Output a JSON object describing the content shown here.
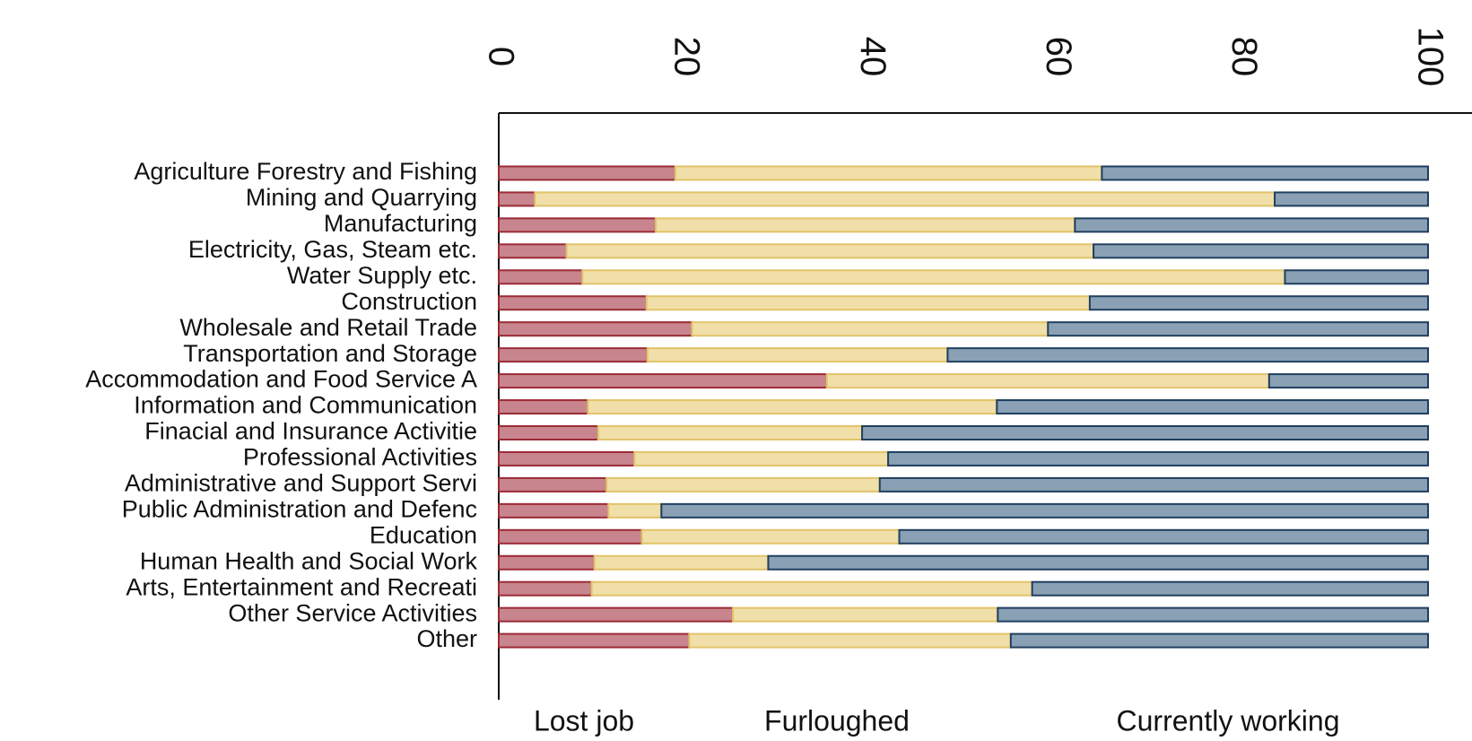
{
  "chart_data": {
    "type": "stacked-barh",
    "categories": [
      "Agriculture Forestry and Fishing",
      "Mining and Quarrying",
      "Manufacturing",
      "Electricity, Gas, Steam etc.",
      "Water Supply etc.",
      "Construction",
      "Wholesale and Retail Trade",
      "Transportation and Storage",
      "Accommodation and Food Service A",
      "Information and Communication",
      "Finacial and Insurance Activitie",
      "Professional Activities",
      "Administrative and Support Servi",
      "Public Administration and Defenc",
      "Education",
      "Human Health and Social Work",
      "Arts, Entertainment and Recreati",
      "Other Service Activities",
      "Other"
    ],
    "series": [
      {
        "name": "Lost job",
        "color": "#c8858d",
        "stroke": "#9b2a36",
        "values": [
          19.0,
          3.9,
          16.9,
          7.3,
          9.0,
          15.9,
          20.8,
          16.0,
          35.3,
          9.6,
          10.7,
          14.6,
          11.6,
          11.8,
          15.4,
          10.3,
          10.0,
          25.2,
          20.5
        ]
      },
      {
        "name": "Furloughed",
        "color": "#f0dfa8",
        "stroke": "#e2c36a",
        "values": [
          45.9,
          79.6,
          45.1,
          56.7,
          75.6,
          47.7,
          38.3,
          32.3,
          47.6,
          44.0,
          28.4,
          27.3,
          29.4,
          5.7,
          27.7,
          18.7,
          47.4,
          28.5,
          34.6
        ]
      },
      {
        "name": "Currently working",
        "color": "#8aa0b4",
        "stroke": "#1f3f5f",
        "values": [
          35.1,
          16.5,
          38.0,
          36.0,
          15.4,
          36.4,
          40.9,
          51.7,
          17.1,
          46.4,
          60.9,
          58.1,
          59.0,
          82.5,
          56.9,
          71.0,
          42.6,
          46.3,
          44.9
        ]
      }
    ],
    "xlim": [
      0,
      100
    ],
    "xticks": [
      0,
      20,
      40,
      60,
      80,
      100
    ],
    "grid": false
  }
}
